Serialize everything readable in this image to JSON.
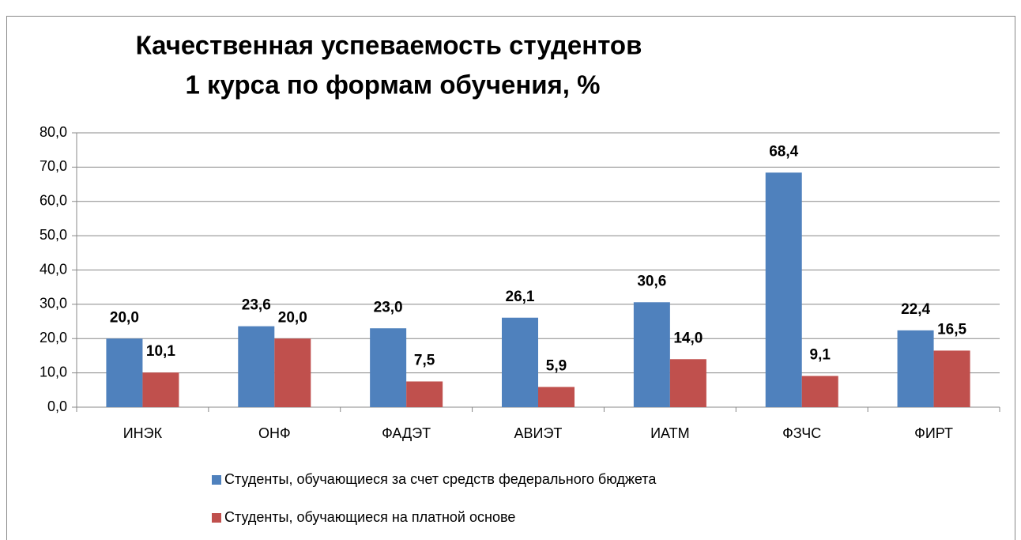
{
  "chart_data": {
    "type": "bar",
    "title": [
      "Качественная успеваемость студентов",
      "1 курса по формам обучения, %"
    ],
    "categories": [
      "ИНЭК",
      "ОНФ",
      "ФАДЭТ",
      "АВИЭТ",
      "ИАТМ",
      "ФЗЧС",
      "ФИРТ"
    ],
    "series": [
      {
        "name": "Студенты, обучающиеся за счет средств федерального бюджета",
        "color": "#4f81bd",
        "values": [
          20.0,
          23.6,
          23.0,
          26.1,
          30.6,
          68.4,
          22.4
        ],
        "value_labels": [
          "20,0",
          "23,6",
          "23,0",
          "26,1",
          "30,6",
          "68,4",
          "22,4"
        ]
      },
      {
        "name": "Студенты, обучающиеся на платной основе",
        "color": "#c0504d",
        "values": [
          10.1,
          20.0,
          7.5,
          5.9,
          14.0,
          9.1,
          16.5
        ],
        "value_labels": [
          "10,1",
          "20,0",
          "7,5",
          "5,9",
          "14,0",
          "9,1",
          "16,5"
        ]
      }
    ],
    "ylim": [
      0,
      80
    ],
    "yticks": [
      {
        "value": 0,
        "label": "0,0"
      },
      {
        "value": 10,
        "label": "10,0"
      },
      {
        "value": 20,
        "label": "20,0"
      },
      {
        "value": 30,
        "label": "30,0"
      },
      {
        "value": 40,
        "label": "40,0"
      },
      {
        "value": 50,
        "label": "50,0"
      },
      {
        "value": 60,
        "label": "60,0"
      },
      {
        "value": 70,
        "label": "70,0"
      },
      {
        "value": 80,
        "label": "80,0"
      }
    ],
    "grid": true
  }
}
